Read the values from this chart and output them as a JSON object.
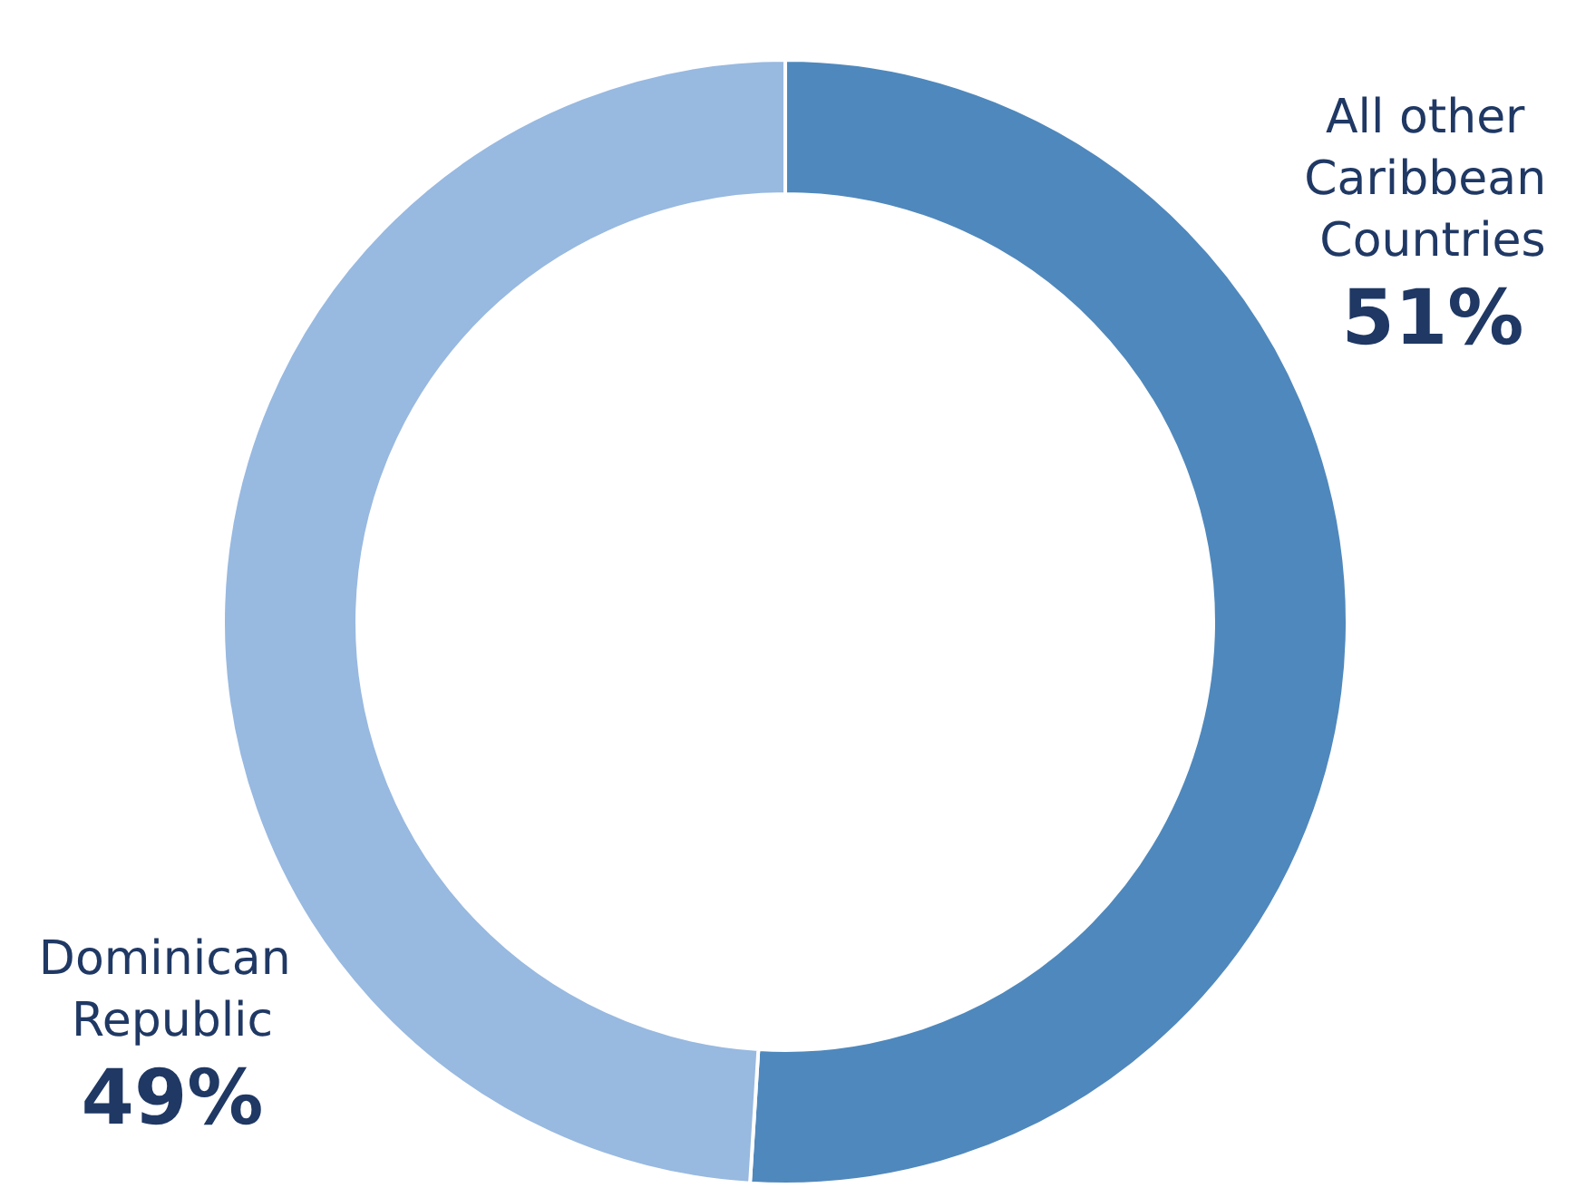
{
  "chart_data": {
    "type": "donut",
    "categories": [
      "All other Caribbean Countries",
      "Dominican Republic"
    ],
    "values": [
      51,
      49
    ],
    "colors": [
      "#4f88bc",
      "#98b9e0"
    ],
    "value_labels": [
      "51%",
      "49%"
    ],
    "legend": false
  }
}
